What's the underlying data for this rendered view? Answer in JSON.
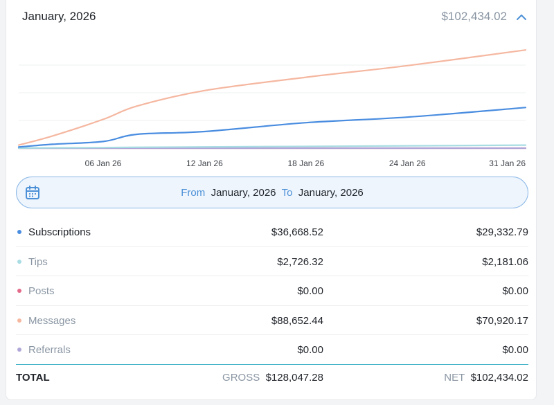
{
  "header": {
    "title": "January, 2026",
    "amount": "$102,434.02"
  },
  "chart_data": {
    "type": "line",
    "x_tick_labels": [
      "06 Jan 26",
      "12 Jan 26",
      "18 Jan 26",
      "24 Jan 26",
      "31 Jan 26"
    ],
    "x": [
      1,
      3,
      6,
      8,
      12,
      18,
      24,
      31
    ],
    "series": [
      {
        "name": "Messages",
        "color": "#f5b7a0",
        "values": [
          2800,
          11000,
          26000,
          38000,
          52000,
          64000,
          74500,
          88652.44
        ]
      },
      {
        "name": "Subscriptions",
        "color": "#4a8de0",
        "values": [
          1000,
          3500,
          6000,
          12500,
          15000,
          23000,
          28000,
          36668.52
        ]
      },
      {
        "name": "Tips",
        "color": "#a8dde3",
        "values": [
          60,
          300,
          500,
          800,
          1100,
          1600,
          2100,
          2726.32
        ]
      },
      {
        "name": "Posts",
        "color": "#e36b8a",
        "values": [
          0,
          0,
          0,
          0,
          0,
          0,
          0,
          0
        ]
      },
      {
        "name": "Referrals",
        "color": "#b0a7d8",
        "values": [
          0,
          0,
          0,
          0,
          0,
          0,
          0,
          0
        ]
      }
    ],
    "ylim": [
      0,
      100000
    ],
    "grid": true,
    "legend": "none"
  },
  "date_range": {
    "from_label": "From",
    "from_value": "January, 2026",
    "to_label": "To",
    "to_value": "January, 2026"
  },
  "rows": [
    {
      "name": "Subscriptions",
      "color": "#4a8de0",
      "gross": "$36,668.52",
      "net": "$29,332.79",
      "active": true
    },
    {
      "name": "Tips",
      "color": "#a8dde3",
      "gross": "$2,726.32",
      "net": "$2,181.06",
      "active": false
    },
    {
      "name": "Posts",
      "color": "#e36b8a",
      "gross": "$0.00",
      "net": "$0.00",
      "active": false
    },
    {
      "name": "Messages",
      "color": "#f5b7a0",
      "gross": "$88,652.44",
      "net": "$70,920.17",
      "active": false
    },
    {
      "name": "Referrals",
      "color": "#b0a7d8",
      "gross": "$0.00",
      "net": "$0.00",
      "active": false
    }
  ],
  "total": {
    "label": "TOTAL",
    "gross_label": "GROSS",
    "gross_value": "$128,047.28",
    "net_label": "NET",
    "net_value": "$102,434.02"
  },
  "icons": {
    "collapse": "chevron-up-icon",
    "calendar": "calendar-icon"
  }
}
